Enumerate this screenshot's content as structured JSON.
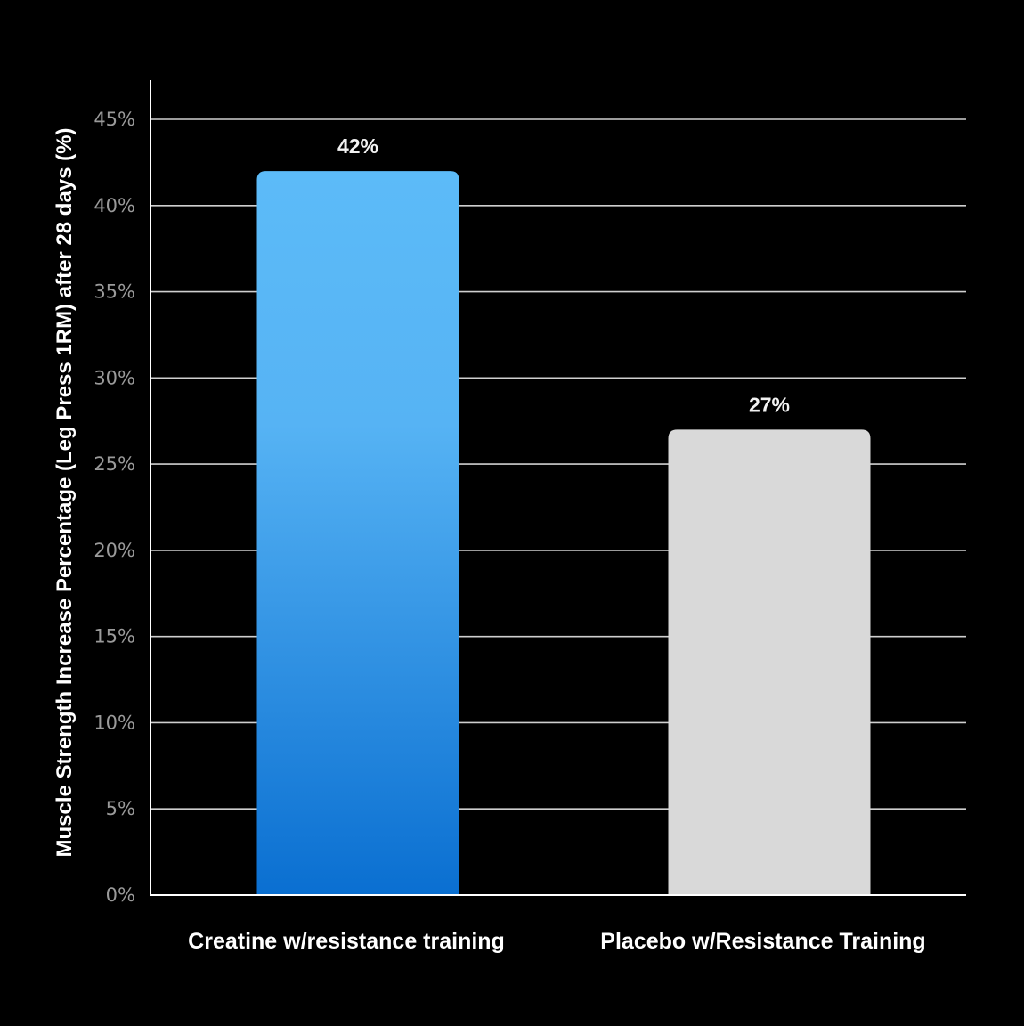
{
  "chart_data": {
    "type": "bar",
    "title": "",
    "xlabel": "",
    "ylabel": "Muscle Strength Increase Percentage (Leg Press 1RM) after 28 days (%)",
    "ylim": [
      0,
      45
    ],
    "yticks": [
      0,
      5,
      10,
      15,
      20,
      25,
      30,
      35,
      40,
      45
    ],
    "ytick_labels": [
      "0%",
      "5%",
      "10%",
      "15%",
      "20%",
      "25%",
      "30%",
      "35%",
      "40%",
      "45%"
    ],
    "grid": true,
    "categories": [
      "Creatine w/resistance training",
      "Placebo w/Resistance Training"
    ],
    "values": [
      42,
      27
    ],
    "data_labels": [
      "42%",
      "27%"
    ],
    "colors": {
      "background": "#000000",
      "creatine_top": "#5cbbf8",
      "creatine_bottom": "#0a6fd1",
      "placebo": "#d9d9d9",
      "gridline": "#cfcfcf",
      "axis": "#ffffff",
      "tick_text": "#9a9a9a"
    }
  }
}
